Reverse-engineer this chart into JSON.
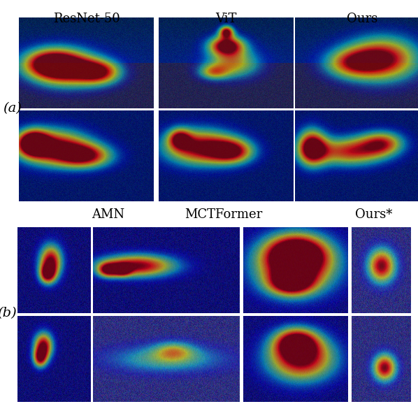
{
  "section_a_labels": [
    "ResNet-50",
    "ViT",
    "Ours"
  ],
  "section_b_labels": [
    "AMN",
    "MCTFormer",
    "Ours*"
  ],
  "section_a_label": "(a)",
  "section_b_label": "(b)",
  "bg_color": "#ffffff",
  "label_fontsize": 13,
  "section_label_fontsize": 14
}
